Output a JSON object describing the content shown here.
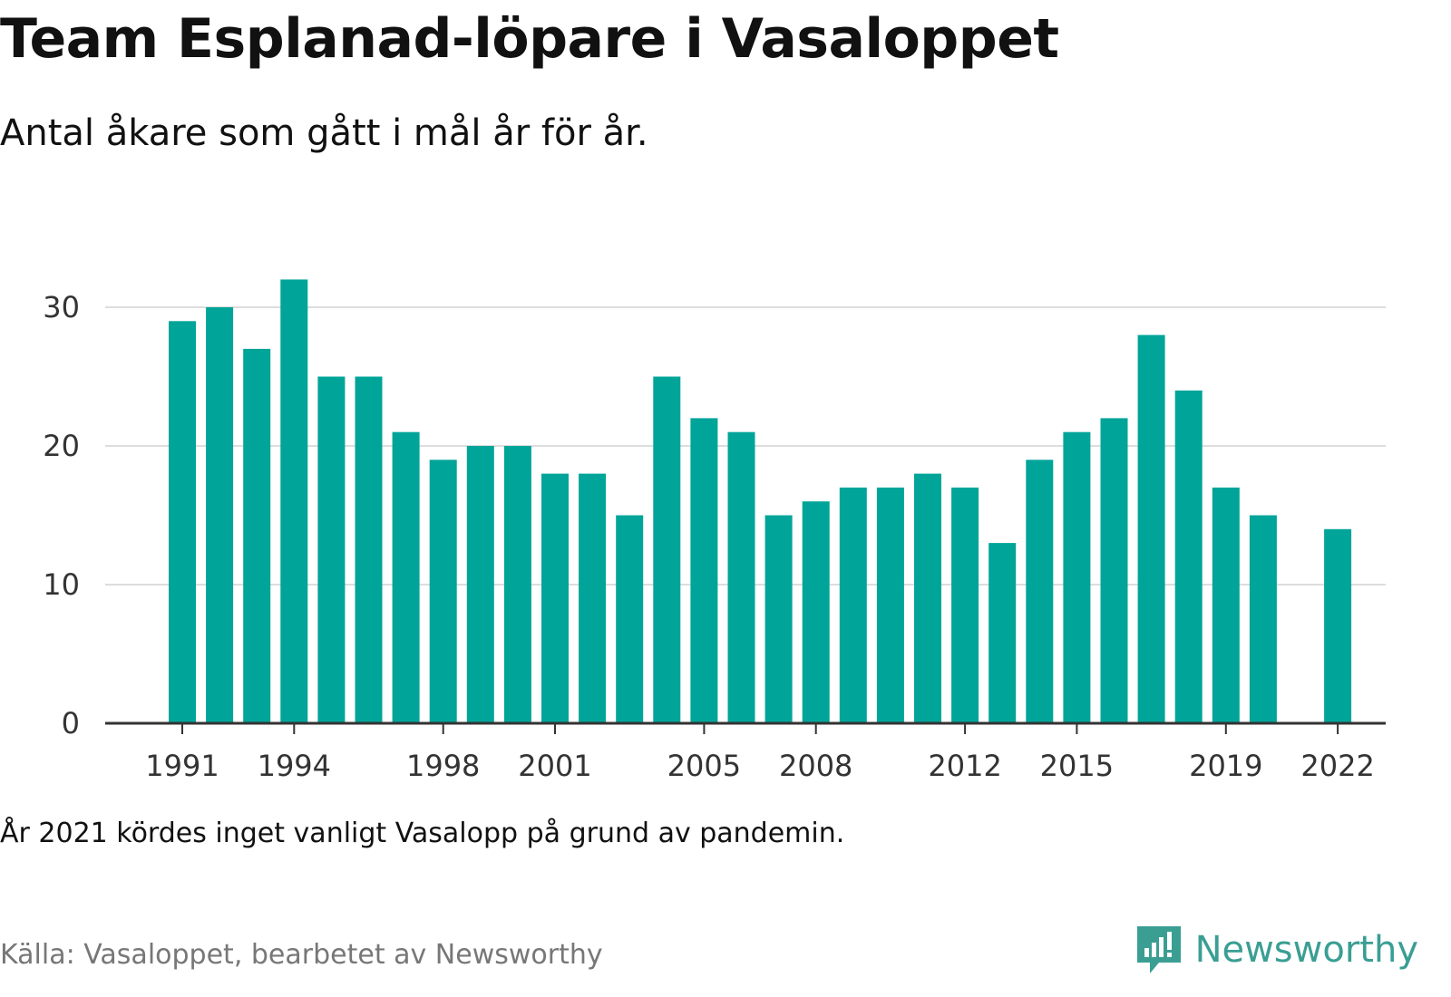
{
  "header": {
    "title": "Team Esplanad-löpare i Vasaloppet",
    "subtitle": "Antal åkare som gått i mål år för år."
  },
  "footer": {
    "note": "År 2021 kördes inget vanligt Vasalopp på grund av pandemin.",
    "source": "Källa: Vasaloppet, bearbetet av Newsworthy",
    "brand": "Newsworthy"
  },
  "colors": {
    "bar": "#00a499",
    "brand": "#3a9e93",
    "grid": "#dddddd",
    "axis": "#333333"
  },
  "chart_data": {
    "type": "bar",
    "title": "Team Esplanad-löpare i Vasaloppet",
    "subtitle": "Antal åkare som gått i mål år för år.",
    "xlabel": "",
    "ylabel": "",
    "ylim": [
      0,
      32
    ],
    "yticks": [
      0,
      10,
      20,
      30
    ],
    "xticks": [
      1991,
      1994,
      1998,
      2001,
      2005,
      2008,
      2012,
      2015,
      2019,
      2022
    ],
    "grid": true,
    "categories": [
      1991,
      1992,
      1993,
      1994,
      1995,
      1996,
      1997,
      1998,
      1999,
      2000,
      2001,
      2002,
      2003,
      2004,
      2005,
      2006,
      2007,
      2008,
      2009,
      2010,
      2011,
      2012,
      2013,
      2014,
      2015,
      2016,
      2017,
      2018,
      2019,
      2020,
      2021,
      2022
    ],
    "values": [
      29,
      30,
      27,
      32,
      25,
      25,
      21,
      19,
      20,
      20,
      18,
      18,
      15,
      25,
      22,
      21,
      15,
      16,
      17,
      17,
      18,
      17,
      13,
      19,
      21,
      22,
      28,
      24,
      17,
      15,
      null,
      14
    ]
  }
}
